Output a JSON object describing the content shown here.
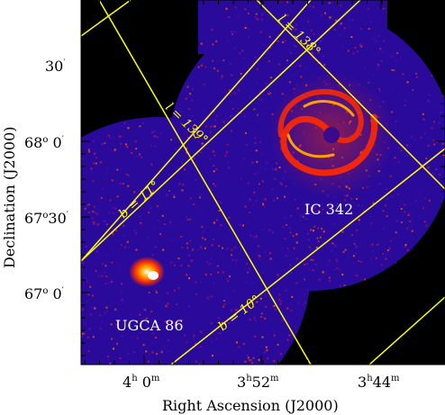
{
  "chart_data": {
    "type": "image",
    "xlabel": "Right Ascension (J2000)",
    "ylabel": "Declination (J2000)",
    "x_ticks": [
      {
        "h": "4",
        "m": "0",
        "text": "4h 0m"
      },
      {
        "h": "3",
        "m": "52",
        "text": "3h52m"
      },
      {
        "h": "3",
        "m": "44",
        "text": "3h44m"
      }
    ],
    "y_ticks": [
      {
        "deg": "",
        "min": "30",
        "text": "30′"
      },
      {
        "deg": "68",
        "min": "0",
        "text": "68° 0′"
      },
      {
        "deg": "67",
        "min": "30",
        "text": "67°30′"
      },
      {
        "deg": "67",
        "min": "0",
        "text": "67° 0′"
      }
    ],
    "grid_lines": [
      {
        "label": "l = 138°"
      },
      {
        "label": "l = 139°"
      },
      {
        "label": "b = 11°"
      },
      {
        "label": "b = 10°"
      }
    ],
    "objects": [
      {
        "name": "IC 342"
      },
      {
        "name": "UGCA 86"
      }
    ],
    "colors": {
      "background_blank": "#000000",
      "noise_field": "#2a0a9a",
      "emission_hot": "#ff3000",
      "emission_peak": "#ffffff",
      "grid": "#ffff00",
      "object_label": "#ffffff"
    }
  }
}
